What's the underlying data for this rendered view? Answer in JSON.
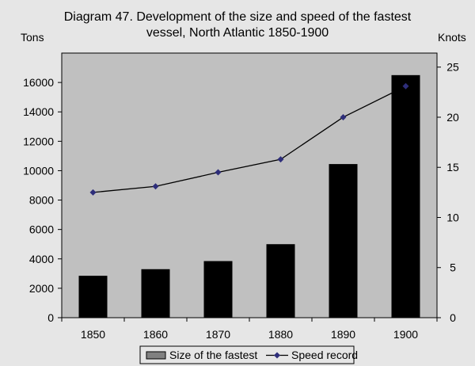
{
  "chart_data": {
    "type": "bar",
    "title_lines": [
      "Diagram 47. Development of the size and speed of the fastest",
      "vessel, North Atlantic 1850-1900"
    ],
    "left_axis_label": "Tons",
    "right_axis_label": "Knots",
    "categories": [
      "1850",
      "1860",
      "1870",
      "1880",
      "1890",
      "1900"
    ],
    "series": [
      {
        "name": "Size of the fastest",
        "type": "bar",
        "axis": "left",
        "values": [
          2850,
          3300,
          3850,
          5000,
          10450,
          16500
        ],
        "color": "#000000"
      },
      {
        "name": "Speed record",
        "type": "line",
        "axis": "right",
        "values": [
          12.5,
          13.1,
          14.5,
          15.8,
          20.0,
          23.1
        ],
        "color": "#000000",
        "marker_color": "#2e2e7a",
        "marker": "diamond"
      }
    ],
    "left_ylim": [
      0,
      18000
    ],
    "left_ticks": [
      0,
      2000,
      4000,
      6000,
      8000,
      10000,
      12000,
      14000,
      16000
    ],
    "right_ylim": [
      0,
      26.4
    ],
    "right_ticks": [
      0,
      5,
      10,
      15,
      20,
      25
    ],
    "grid": false,
    "legend_placement": "bottom",
    "plot_background": "#c0c0c0",
    "legend_bar_swatch_color": "#808080"
  }
}
